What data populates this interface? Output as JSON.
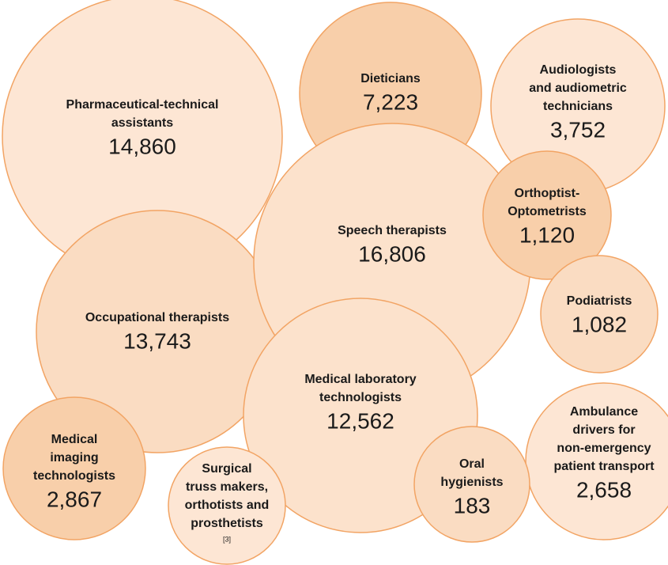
{
  "chart_data": {
    "type": "bubble",
    "stroke_color": "#f2a464",
    "bubbles": [
      {
        "name": "Pharmaceutical-technical assistants",
        "label_lines": [
          "Pharmaceutical-technical",
          "assistants"
        ],
        "value": 14860,
        "value_label": "14,860",
        "fill": "#fde6d4"
      },
      {
        "name": "Dieticians",
        "label_lines": [
          "Dieticians"
        ],
        "value": 7223,
        "value_label": "7,223",
        "fill": "#f8cfaa"
      },
      {
        "name": "Audiologists and audiometric technicians",
        "label_lines": [
          "Audiologists",
          "and audiometric",
          "technicians"
        ],
        "value": 3752,
        "value_label": "3,752",
        "fill": "#fde6d4"
      },
      {
        "name": "Occupational therapists",
        "label_lines": [
          "Occupational therapists"
        ],
        "value": 13743,
        "value_label": "13,743",
        "fill": "#fadcc2"
      },
      {
        "name": "Speech therapists",
        "label_lines": [
          "Speech therapists"
        ],
        "value": 16806,
        "value_label": "16,806",
        "fill": "#fce2cc"
      },
      {
        "name": "Orthoptist-Optometrists",
        "label_lines": [
          "Orthoptist-",
          "Optometrists"
        ],
        "value": 1120,
        "value_label": "1,120",
        "fill": "#f8cfaa"
      },
      {
        "name": "Podiatrists",
        "label_lines": [
          "Podiatrists"
        ],
        "value": 1082,
        "value_label": "1,082",
        "fill": "#fadcc2"
      },
      {
        "name": "Medical laboratory technologists",
        "label_lines": [
          "Medical laboratory",
          "technologists"
        ],
        "value": 12562,
        "value_label": "12,562",
        "fill": "#fce2cc"
      },
      {
        "name": "Ambulance drivers for non-emergency patient transport",
        "label_lines": [
          "Ambulance",
          "drivers for",
          "non-emergency",
          "patient transport"
        ],
        "value": 2658,
        "value_label": "2,658",
        "fill": "#fde6d4"
      },
      {
        "name": "Medical imaging technologists",
        "label_lines": [
          "Medical",
          "imaging",
          "technologists"
        ],
        "value": 2867,
        "value_label": "2,867",
        "fill": "#f8cfaa"
      },
      {
        "name": "Surgical truss makers, orthotists and prosthetists",
        "label_lines": [
          "Surgical",
          "truss makers,",
          "orthotists and",
          "prosthetists"
        ],
        "value": null,
        "value_label": "",
        "note": "[3]",
        "fill": "#fde6d4"
      },
      {
        "name": "Oral hygienists",
        "label_lines": [
          "Oral",
          "hygienists"
        ],
        "value": 183,
        "value_label": "183",
        "fill": "#fadcc2"
      }
    ]
  }
}
